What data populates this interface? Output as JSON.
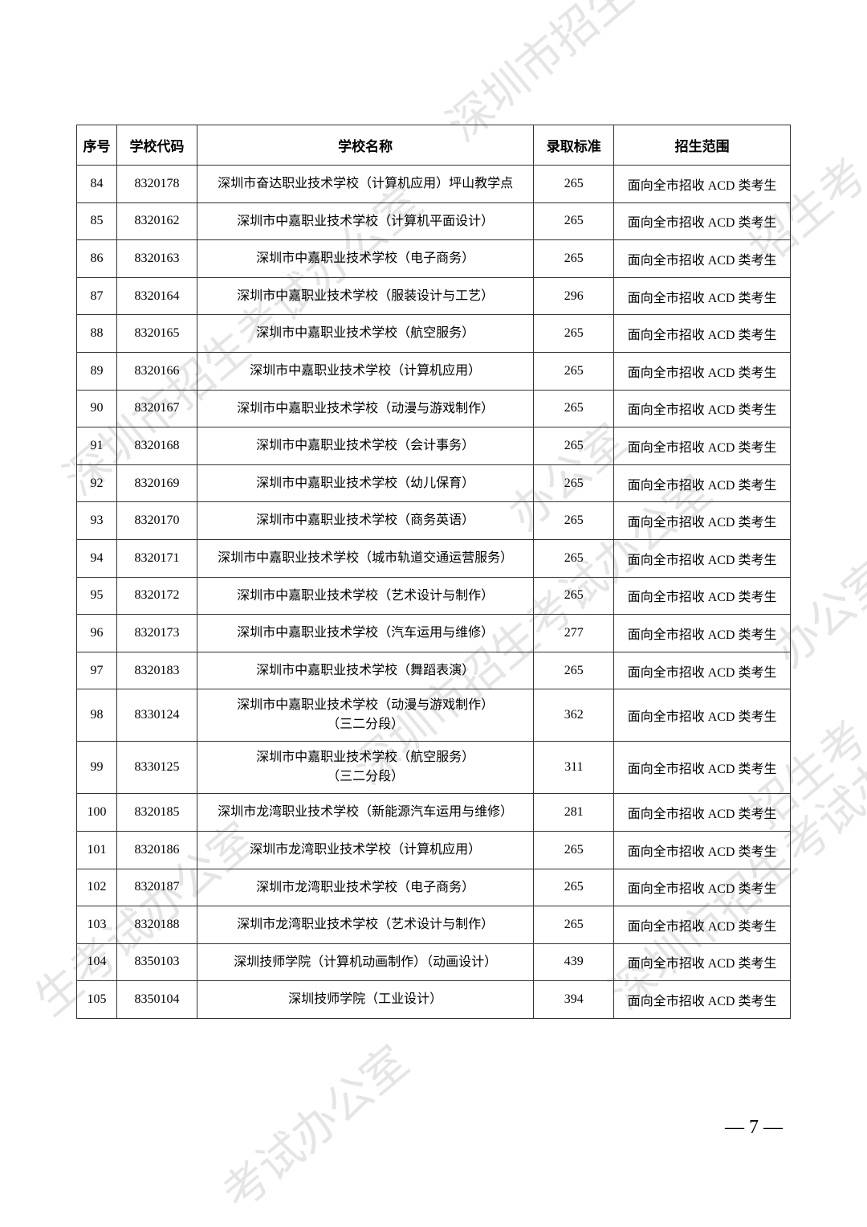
{
  "watermarks": {
    "text1": "深圳市招生",
    "text2": "深圳市招生考",
    "text3": "招生考",
    "text4": "办公室",
    "text5": "深圳市招生考试办公室",
    "text6": "生考试办公室",
    "text7": "考试办公室"
  },
  "table": {
    "headers": {
      "seq": "序号",
      "code": "学校代码",
      "name": "学校名称",
      "score": "录取标准",
      "scope": "招生范围"
    },
    "rows": [
      {
        "seq": "84",
        "code": "8320178",
        "name": "深圳市奋达职业技术学校（计算机应用）坪山教学点",
        "score": "265",
        "scope": "面向全市招收 ACD 类考生"
      },
      {
        "seq": "85",
        "code": "8320162",
        "name": "深圳市中嘉职业技术学校（计算机平面设计）",
        "score": "265",
        "scope": "面向全市招收 ACD 类考生"
      },
      {
        "seq": "86",
        "code": "8320163",
        "name": "深圳市中嘉职业技术学校（电子商务）",
        "score": "265",
        "scope": "面向全市招收 ACD 类考生"
      },
      {
        "seq": "87",
        "code": "8320164",
        "name": "深圳市中嘉职业技术学校（服装设计与工艺）",
        "score": "296",
        "scope": "面向全市招收 ACD 类考生"
      },
      {
        "seq": "88",
        "code": "8320165",
        "name": "深圳市中嘉职业技术学校（航空服务）",
        "score": "265",
        "scope": "面向全市招收 ACD 类考生"
      },
      {
        "seq": "89",
        "code": "8320166",
        "name": "深圳市中嘉职业技术学校（计算机应用）",
        "score": "265",
        "scope": "面向全市招收 ACD 类考生"
      },
      {
        "seq": "90",
        "code": "8320167",
        "name": "深圳市中嘉职业技术学校（动漫与游戏制作）",
        "score": "265",
        "scope": "面向全市招收 ACD 类考生"
      },
      {
        "seq": "91",
        "code": "8320168",
        "name": "深圳市中嘉职业技术学校（会计事务）",
        "score": "265",
        "scope": "面向全市招收 ACD 类考生"
      },
      {
        "seq": "92",
        "code": "8320169",
        "name": "深圳市中嘉职业技术学校（幼儿保育）",
        "score": "265",
        "scope": "面向全市招收 ACD 类考生"
      },
      {
        "seq": "93",
        "code": "8320170",
        "name": "深圳市中嘉职业技术学校（商务英语）",
        "score": "265",
        "scope": "面向全市招收 ACD 类考生"
      },
      {
        "seq": "94",
        "code": "8320171",
        "name": "深圳市中嘉职业技术学校（城市轨道交通运营服务）",
        "score": "265",
        "scope": "面向全市招收 ACD 类考生"
      },
      {
        "seq": "95",
        "code": "8320172",
        "name": "深圳市中嘉职业技术学校（艺术设计与制作）",
        "score": "265",
        "scope": "面向全市招收 ACD 类考生"
      },
      {
        "seq": "96",
        "code": "8320173",
        "name": "深圳市中嘉职业技术学校（汽车运用与维修）",
        "score": "277",
        "scope": "面向全市招收 ACD 类考生"
      },
      {
        "seq": "97",
        "code": "8320183",
        "name": "深圳市中嘉职业技术学校（舞蹈表演）",
        "score": "265",
        "scope": "面向全市招收 ACD 类考生"
      },
      {
        "seq": "98",
        "code": "8330124",
        "name": "深圳市中嘉职业技术学校（动漫与游戏制作）\n（三二分段）",
        "score": "362",
        "scope": "面向全市招收 ACD 类考生",
        "multiline": true
      },
      {
        "seq": "99",
        "code": "8330125",
        "name": "深圳市中嘉职业技术学校（航空服务）\n（三二分段）",
        "score": "311",
        "scope": "面向全市招收 ACD 类考生",
        "multiline": true
      },
      {
        "seq": "100",
        "code": "8320185",
        "name": "深圳市龙湾职业技术学校（新能源汽车运用与维修）",
        "score": "281",
        "scope": "面向全市招收 ACD 类考生"
      },
      {
        "seq": "101",
        "code": "8320186",
        "name": "深圳市龙湾职业技术学校（计算机应用）",
        "score": "265",
        "scope": "面向全市招收 ACD 类考生"
      },
      {
        "seq": "102",
        "code": "8320187",
        "name": "深圳市龙湾职业技术学校（电子商务）",
        "score": "265",
        "scope": "面向全市招收 ACD 类考生"
      },
      {
        "seq": "103",
        "code": "8320188",
        "name": "深圳市龙湾职业技术学校（艺术设计与制作）",
        "score": "265",
        "scope": "面向全市招收 ACD 类考生"
      },
      {
        "seq": "104",
        "code": "8350103",
        "name": "深圳技师学院（计算机动画制作）（动画设计）",
        "score": "439",
        "scope": "面向全市招收 ACD 类考生"
      },
      {
        "seq": "105",
        "code": "8350104",
        "name": "深圳技师学院（工业设计）",
        "score": "394",
        "scope": "面向全市招收 ACD 类考生"
      }
    ]
  },
  "page_number": "— 7 —"
}
